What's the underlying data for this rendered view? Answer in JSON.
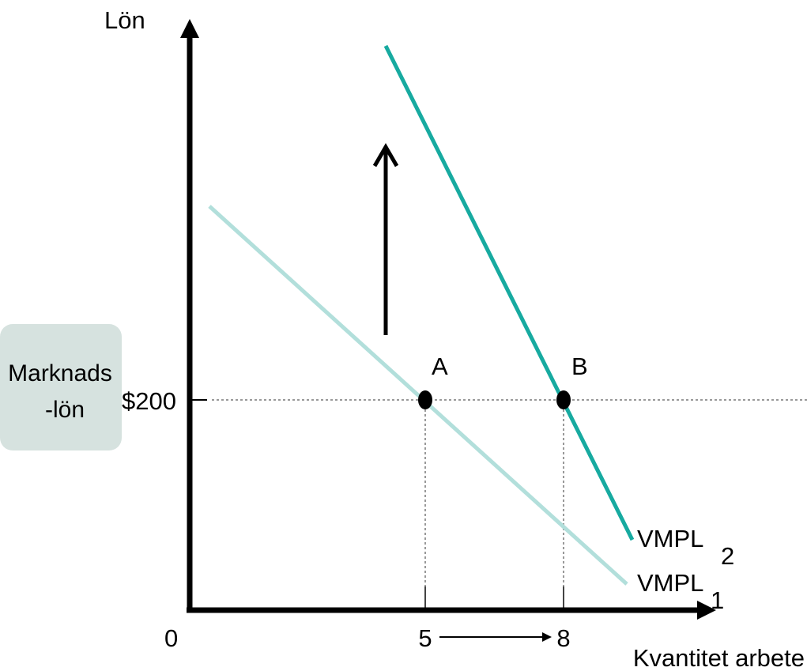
{
  "axes": {
    "y_label": "Lön",
    "x_label": "Kvantitet arbete",
    "origin_label": "0"
  },
  "wage": {
    "tick_label": "$200",
    "badge_line1": "Marknads",
    "badge_line2": "-lön"
  },
  "points": {
    "a_label": "A",
    "b_label": "B"
  },
  "quantities": {
    "q1": "5",
    "q2": "8"
  },
  "curves": {
    "vmpl1_base": "VMPL",
    "vmpl1_sub": "1",
    "vmpl2_base": "VMPL",
    "vmpl2_sub": "2"
  },
  "colors": {
    "vmpl1": "#b2dfdb",
    "vmpl2": "#17aaa0",
    "badge": "#d6e2df",
    "guide": "#999999"
  }
}
